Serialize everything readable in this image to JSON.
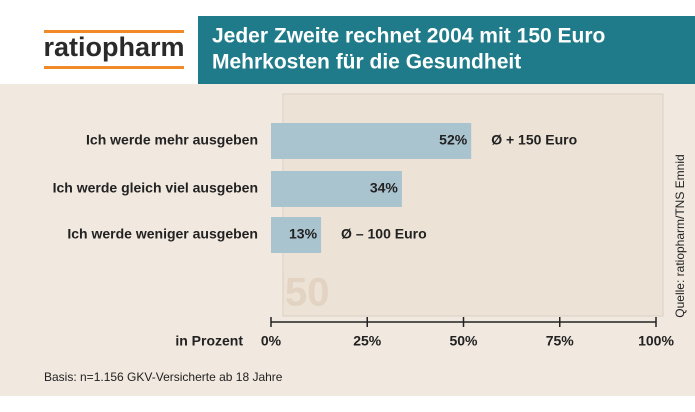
{
  "logo": "ratiopharm",
  "chart_data": {
    "type": "hbar",
    "title": [
      "Jeder Zweite rechnet 2004 mit 150 Euro",
      "Mehrkosten für die Gesundheit"
    ],
    "categories": [
      "Ich werde mehr ausgeben",
      "Ich werde gleich viel ausgeben",
      "Ich werde weniger ausgeben"
    ],
    "values": [
      52,
      34,
      13
    ],
    "value_labels": [
      "52%",
      "34%",
      "13%"
    ],
    "value_notes": [
      "Ø + 150 Euro",
      null,
      "Ø – 100 Euro"
    ],
    "color": "#a9c3cf",
    "x_label": "in Prozent",
    "xlim": [
      0,
      100
    ],
    "xticks": [
      {
        "value": 0,
        "label": "0%"
      },
      {
        "value": 25,
        "label": "25%"
      },
      {
        "value": 50,
        "label": "50%"
      },
      {
        "value": 75,
        "label": "75%"
      },
      {
        "value": 100,
        "label": "100%"
      }
    ],
    "footnote": "Basis: n=1.156 GKV-Versicherte ab 18 Jahre",
    "source": "Quelle: ratiopharm/TNS Emnid"
  }
}
